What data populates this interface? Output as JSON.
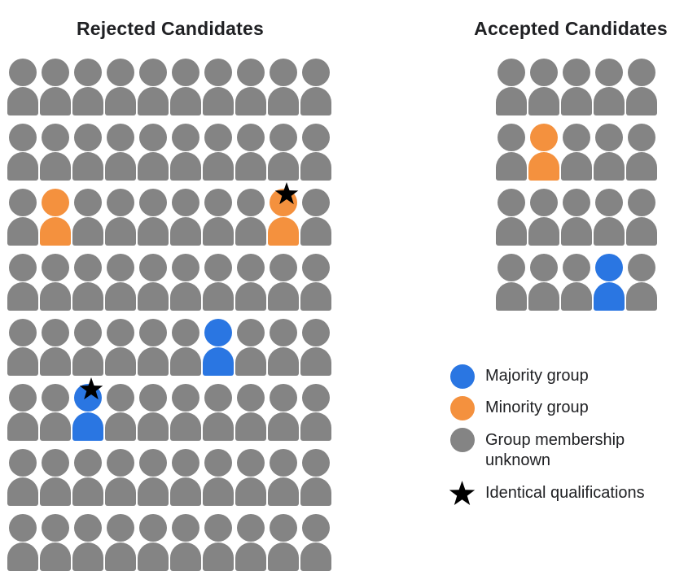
{
  "figure": {
    "panels": {
      "rejected": {
        "title": "Rejected Candidates",
        "rows": 8,
        "columns": 10,
        "total_people": 80,
        "default_group": "unknown",
        "highlighted": [
          {
            "row": 3,
            "col": 2,
            "group": "minority",
            "star": false
          },
          {
            "row": 3,
            "col": 9,
            "group": "minority",
            "star": true
          },
          {
            "row": 5,
            "col": 7,
            "group": "majority",
            "star": false
          },
          {
            "row": 6,
            "col": 3,
            "group": "majority",
            "star": true
          }
        ]
      },
      "accepted": {
        "title": "Accepted Candidates",
        "rows": 4,
        "columns": 5,
        "total_people": 20,
        "default_group": "unknown",
        "highlighted": [
          {
            "row": 2,
            "col": 2,
            "group": "minority",
            "star": false
          },
          {
            "row": 4,
            "col": 4,
            "group": "majority",
            "star": false
          }
        ]
      }
    },
    "legend": {
      "items": [
        {
          "swatch": "circle",
          "group": "majority",
          "label": "Majority group"
        },
        {
          "swatch": "circle",
          "group": "minority",
          "label": "Minority group"
        },
        {
          "swatch": "circle",
          "group": "unknown",
          "label": "Group membership unknown"
        },
        {
          "swatch": "star",
          "group": "star",
          "label": "Identical qualifications"
        }
      ]
    },
    "colors": {
      "majority": "#2A76E2",
      "minority": "#F4913E",
      "unknown": "#848484",
      "star": "#000000",
      "text": "#202124",
      "background": "#FFFFFF"
    }
  }
}
